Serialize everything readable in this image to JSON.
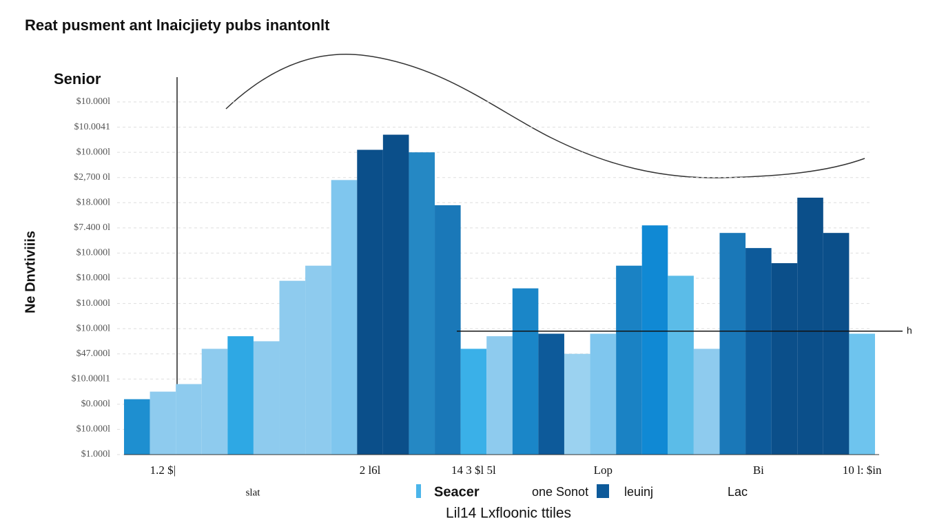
{
  "title": "Reat pusment ant lnaicjiety pubs inantonlt",
  "chart_data": {
    "type": "bar",
    "y_axis_title": "Senior",
    "y_label": "Ne Dnvtiviiis",
    "subtitle": "slat",
    "x_label": "Lil14 Lxfloonic ttiles",
    "categories": [
      null,
      "1.2 $|",
      null,
      null,
      null,
      null,
      null,
      null,
      null,
      "2 l6l",
      null,
      null,
      null,
      "14 3 $l 5l",
      null,
      null,
      null,
      null,
      "Lop",
      null,
      null,
      null,
      null,
      null,
      "Bi",
      null,
      null,
      null,
      "10 l:  $in"
    ],
    "values": [
      2.2,
      2.5,
      2.8,
      4.2,
      4.7,
      4.5,
      6.9,
      7.5,
      10.9,
      12.1,
      12.7,
      12.0,
      9.9,
      4.2,
      4.7,
      6.6,
      4.8,
      4.0,
      4.8,
      7.5,
      9.1,
      7.1,
      4.2,
      8.8,
      8.2,
      7.6,
      10.2,
      8.8,
      4.8
    ],
    "colors": [
      "#1e8fd0",
      "#8ecbee",
      "#8ecbee",
      "#8ecbee",
      "#2ea8e4",
      "#8ecbee",
      "#8ecbee",
      "#8ecbee",
      "#7fc6ee",
      "#0b4f8a",
      "#0b4f8a",
      "#2588c4",
      "#1a78b8",
      "#3ab0e8",
      "#8ecbee",
      "#1a86c8",
      "#0d5a9a",
      "#9bd2f0",
      "#7fc6ee",
      "#1a82c4",
      "#1089d4",
      "#5bbce8",
      "#8ecbee",
      "#1a78b8",
      "#0d5a9a",
      "#0b4f8a",
      "#0b4f8a",
      "#0b4f8a",
      "#6ec4ee"
    ],
    "ylim": [
      0,
      14
    ],
    "yticks": [
      {
        "value": 0,
        "label": "$1.000l"
      },
      {
        "value": 1,
        "label": "$10.000l"
      },
      {
        "value": 2,
        "label": "$0.000l"
      },
      {
        "value": 3,
        "label": "$10.000l1"
      },
      {
        "value": 4,
        "label": "$47.000l"
      },
      {
        "value": 5,
        "label": "$10.000l"
      },
      {
        "value": 6,
        "label": "$10.000l"
      },
      {
        "value": 7,
        "label": "$10.000l"
      },
      {
        "value": 8,
        "label": "$10.000l"
      },
      {
        "value": 9,
        "label": "$7.400 0l"
      },
      {
        "value": 10,
        "label": "$18.000l"
      },
      {
        "value": 11,
        "label": "$2,700 0l"
      },
      {
        "value": 12,
        "label": "$10.000l"
      },
      {
        "value": 13,
        "label": "$10.0041"
      },
      {
        "value": 14,
        "label": "$10.000l"
      }
    ],
    "grid": true,
    "reference_line": {
      "value": 4.9,
      "label": "h"
    },
    "legend": [
      {
        "label": "Seacer",
        "color": "#4bb5ea"
      },
      {
        "label": "one Sonot"
      },
      {
        "label": "leuinj",
        "color": "#0d5a9a"
      },
      {
        "label": "Lac"
      }
    ]
  }
}
